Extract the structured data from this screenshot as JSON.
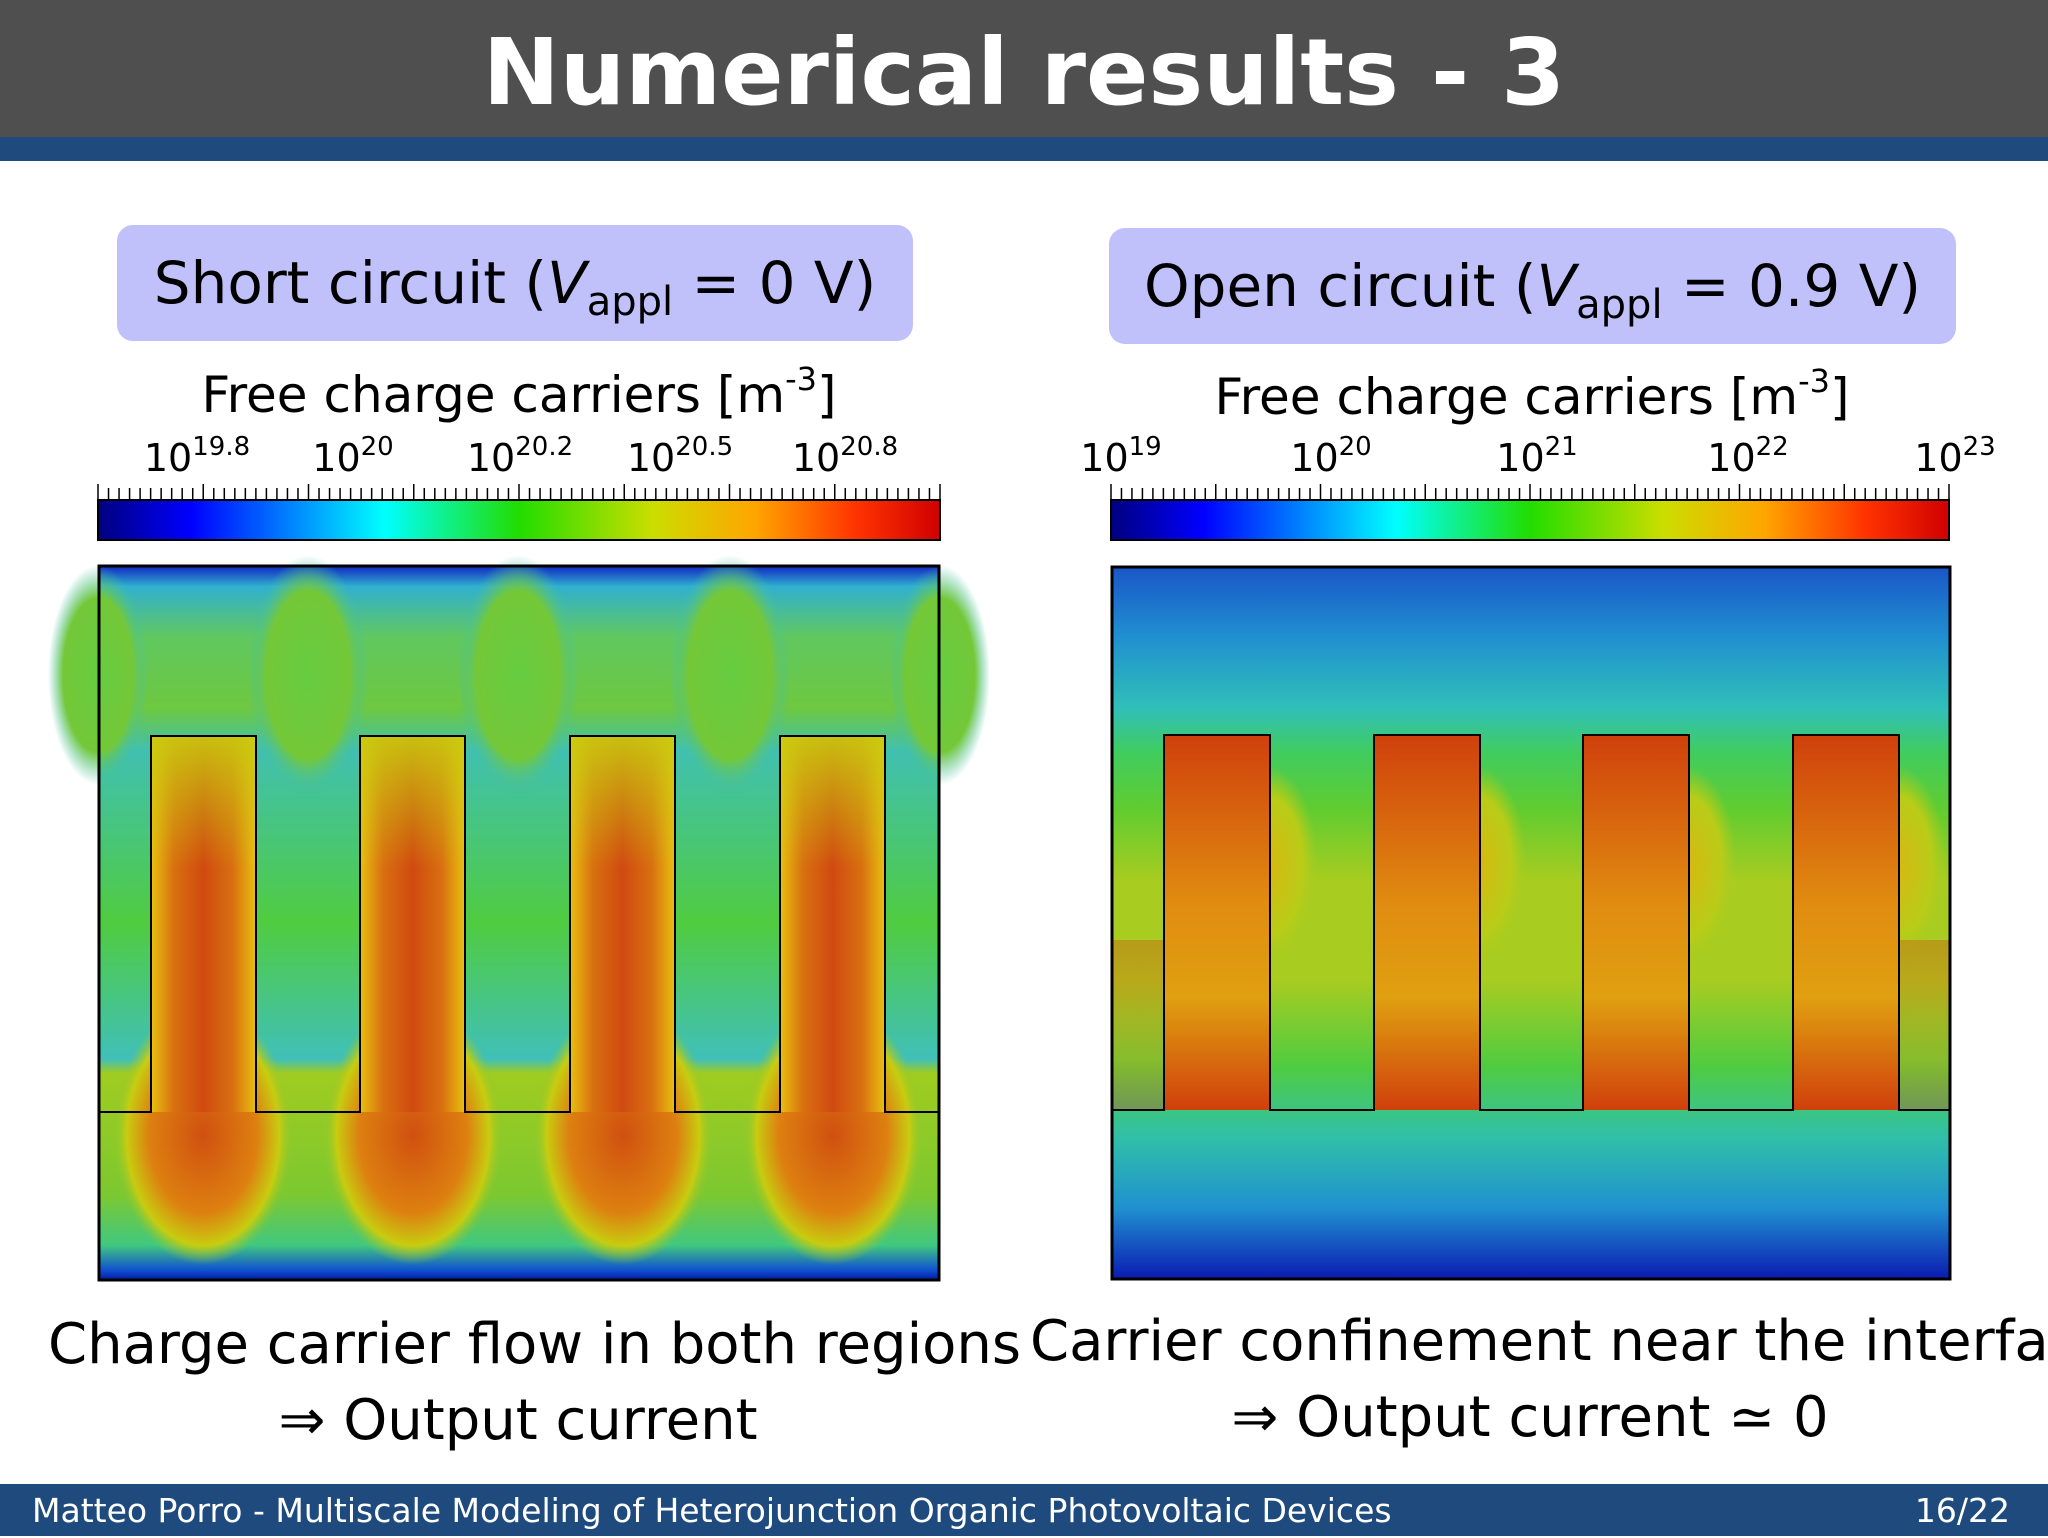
{
  "slide": {
    "title": "Numerical results - 3",
    "page": "16/22",
    "footer": "Matteo Porro - Multiscale Modeling of Heterojunction Organic Photovoltaic Devices"
  },
  "left": {
    "cond_prefix": "Short circuit (",
    "cond_var": "V",
    "cond_sub": "appl",
    "cond_value": " = 0 V)",
    "cb_label": "Free charge carriers [m",
    "cb_unit_exp": "-3",
    "cb_label_end": "]",
    "ticks": [
      {
        "base": "10",
        "exp": "19.8"
      },
      {
        "base": "10",
        "exp": "20"
      },
      {
        "base": "10",
        "exp": "20.2"
      },
      {
        "base": "10",
        "exp": "20.5"
      },
      {
        "base": "10",
        "exp": "20.8"
      }
    ],
    "caption_line1": "Charge carrier flow in both regions",
    "caption_line2": "⇒ Output current"
  },
  "right": {
    "cond_prefix": "Open circuit (",
    "cond_var": "V",
    "cond_sub": "appl",
    "cond_value": " = 0.9 V)",
    "cb_label": "Free charge carriers [m",
    "cb_unit_exp": "-3",
    "cb_label_end": "]",
    "ticks": [
      {
        "base": "10",
        "exp": "19"
      },
      {
        "base": "10",
        "exp": "20"
      },
      {
        "base": "10",
        "exp": "21"
      },
      {
        "base": "10",
        "exp": "22"
      },
      {
        "base": "10",
        "exp": "23"
      }
    ],
    "caption_line1": "Carrier confinement near the interface",
    "caption_line2": "⇒ Output current ≃ 0"
  },
  "colors": {
    "header": "#4f4f4f",
    "accent": "#1f4a7e",
    "condition_box": "#c0c0fb"
  }
}
